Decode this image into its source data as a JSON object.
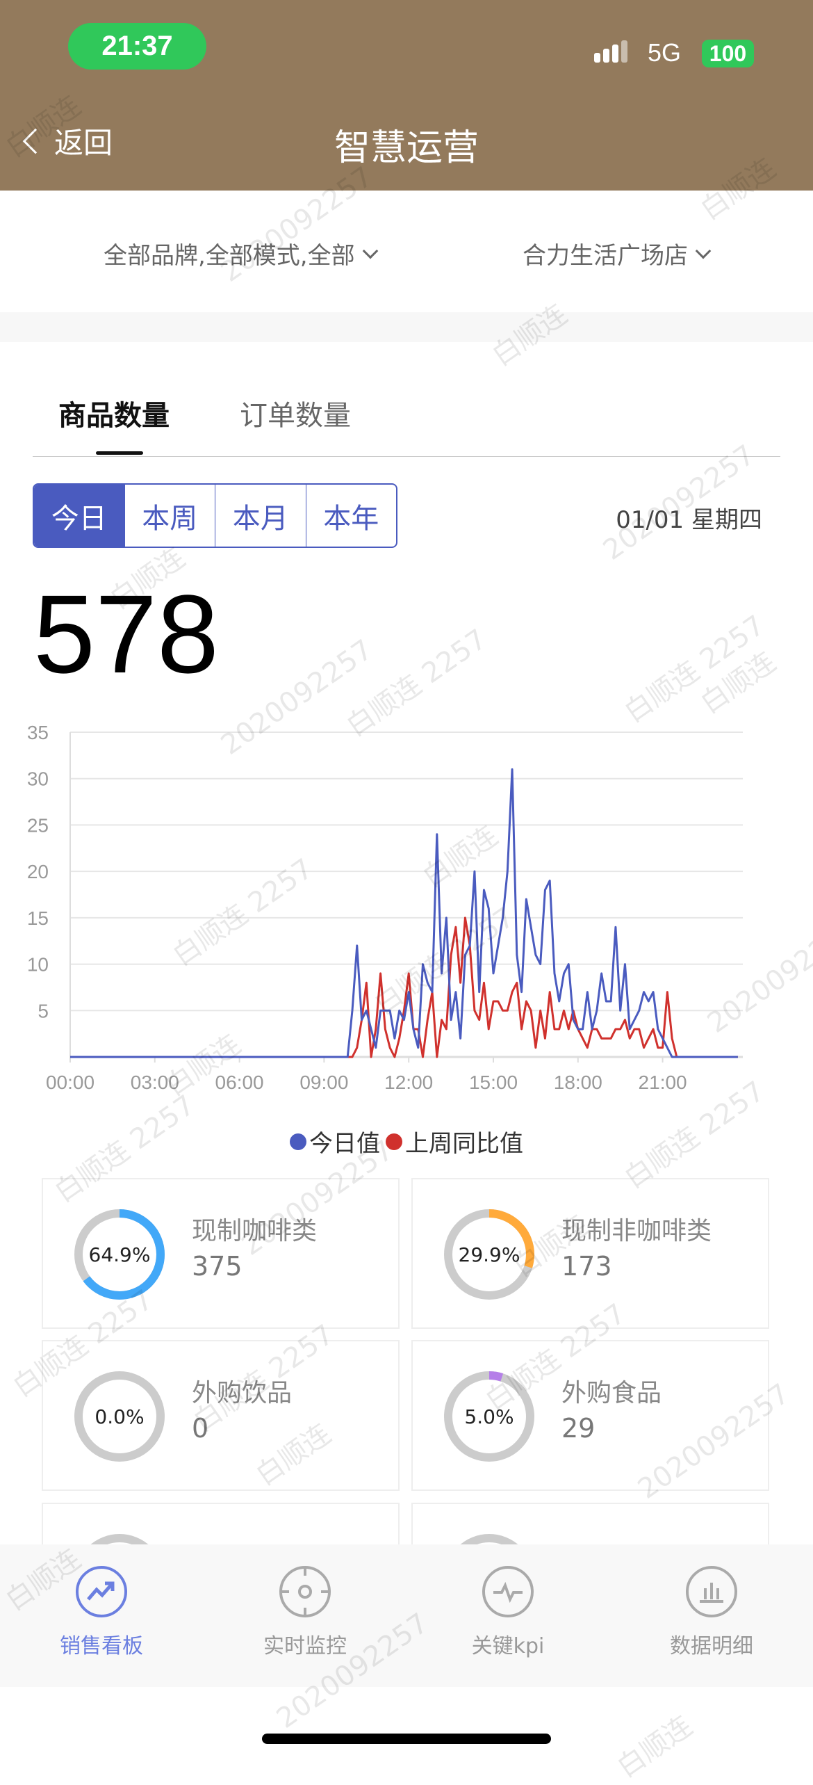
{
  "status_bar": {
    "time": "21:37",
    "network": "5G",
    "battery": "100"
  },
  "header": {
    "back_label": "返回",
    "title": "智慧运营"
  },
  "filters": {
    "brand_mode": "全部品牌,全部模式,全部",
    "store": "合力生活广场店"
  },
  "tabs": [
    {
      "label": "商品数量",
      "active": true
    },
    {
      "label": "订单数量",
      "active": false
    }
  ],
  "period": {
    "options": [
      "今日",
      "本周",
      "本月",
      "本年"
    ],
    "selected": "今日"
  },
  "date_label": "01/01 星期四",
  "total": "578",
  "chart_data": {
    "type": "line",
    "ylim": [
      0,
      35
    ],
    "yticks": [
      "5",
      "10",
      "15",
      "20",
      "25",
      "30",
      "35"
    ],
    "xticks": [
      "00:00",
      "03:00",
      "06:00",
      "09:00",
      "12:00",
      "15:00",
      "18:00",
      "21:00"
    ],
    "grid": true,
    "legend_position": "bottom",
    "x": [
      "00:00",
      "09:50",
      "10:00",
      "10:10",
      "10:20",
      "10:30",
      "10:40",
      "10:50",
      "11:00",
      "11:10",
      "11:20",
      "11:30",
      "11:40",
      "11:50",
      "12:00",
      "12:10",
      "12:20",
      "12:30",
      "12:40",
      "12:50",
      "13:00",
      "13:10",
      "13:20",
      "13:30",
      "13:40",
      "13:50",
      "14:00",
      "14:10",
      "14:20",
      "14:30",
      "14:40",
      "14:50",
      "15:00",
      "15:10",
      "15:20",
      "15:30",
      "15:40",
      "15:50",
      "16:00",
      "16:10",
      "16:20",
      "16:30",
      "16:40",
      "16:50",
      "17:00",
      "17:10",
      "17:20",
      "17:30",
      "17:40",
      "17:50",
      "18:00",
      "18:10",
      "18:20",
      "18:30",
      "18:40",
      "18:50",
      "19:00",
      "19:10",
      "19:20",
      "19:30",
      "19:40",
      "19:50",
      "20:00",
      "20:10",
      "20:20",
      "20:30",
      "20:40",
      "20:50",
      "21:00",
      "21:10",
      "21:20",
      "21:30",
      "23:40"
    ],
    "series": [
      {
        "name": "今日值",
        "color": "#4a5bbf",
        "values": [
          0,
          0,
          5,
          12,
          4,
          5,
          3,
          1,
          5,
          5,
          5,
          2,
          5,
          4,
          7,
          3,
          1,
          10,
          8,
          7,
          24,
          9,
          15,
          4,
          7,
          2,
          11,
          12,
          20,
          7,
          18,
          16,
          9,
          12,
          15,
          20,
          31,
          11,
          7,
          17,
          14,
          11,
          10,
          18,
          19,
          9,
          6,
          9,
          10,
          4,
          3,
          3,
          7,
          3,
          5,
          9,
          6,
          6,
          14,
          5,
          10,
          3,
          4,
          5,
          7,
          6,
          7,
          3,
          2,
          1,
          0,
          0,
          0
        ]
      },
      {
        "name": "上周同比值",
        "color": "#d0312d",
        "values": [
          0,
          0,
          0,
          1,
          4,
          8,
          0,
          3,
          9,
          3,
          1,
          0,
          2,
          5,
          9,
          3,
          3,
          0,
          4,
          7,
          0,
          4,
          3,
          11,
          14,
          8,
          15,
          12,
          5,
          4,
          8,
          3,
          6,
          6,
          5,
          5,
          7,
          8,
          3,
          6,
          5,
          1,
          5,
          2,
          7,
          3,
          3,
          5,
          3,
          5,
          3,
          2,
          1,
          3,
          3,
          2,
          2,
          2,
          3,
          3,
          4,
          2,
          3,
          3,
          1,
          2,
          3,
          1,
          1,
          7,
          2,
          0,
          0
        ]
      }
    ]
  },
  "categories": [
    {
      "name": "现制咖啡类",
      "value": "375",
      "percent_label": "64.9%",
      "percent": 64.9,
      "color": "#42a8f8"
    },
    {
      "name": "现制非咖啡类",
      "value": "173",
      "percent_label": "29.9%",
      "percent": 29.9,
      "color": "#ffaa3b"
    },
    {
      "name": "外购饮品",
      "value": "0",
      "percent_label": "0.0%",
      "percent": 0,
      "color": "#b57fe8"
    },
    {
      "name": "外购食品",
      "value": "29",
      "percent_label": "5.0%",
      "percent": 5.0,
      "color": "#b57fe8"
    }
  ],
  "bottom_nav": [
    {
      "label": "销售看板",
      "icon": "trend-up-icon",
      "active": true
    },
    {
      "label": "实时监控",
      "icon": "crosshair-icon",
      "active": false
    },
    {
      "label": "关键kpi",
      "icon": "pulse-icon",
      "active": false
    },
    {
      "label": "数据明细",
      "icon": "bar-chart-icon",
      "active": false
    }
  ],
  "colors": {
    "header": "#937a5c",
    "accent": "#4a5bbf",
    "nav_active": "#6b7fe0"
  },
  "watermark": {
    "name": "白顺连",
    "id": "2020092257",
    "combined": "白顺连 2257"
  }
}
